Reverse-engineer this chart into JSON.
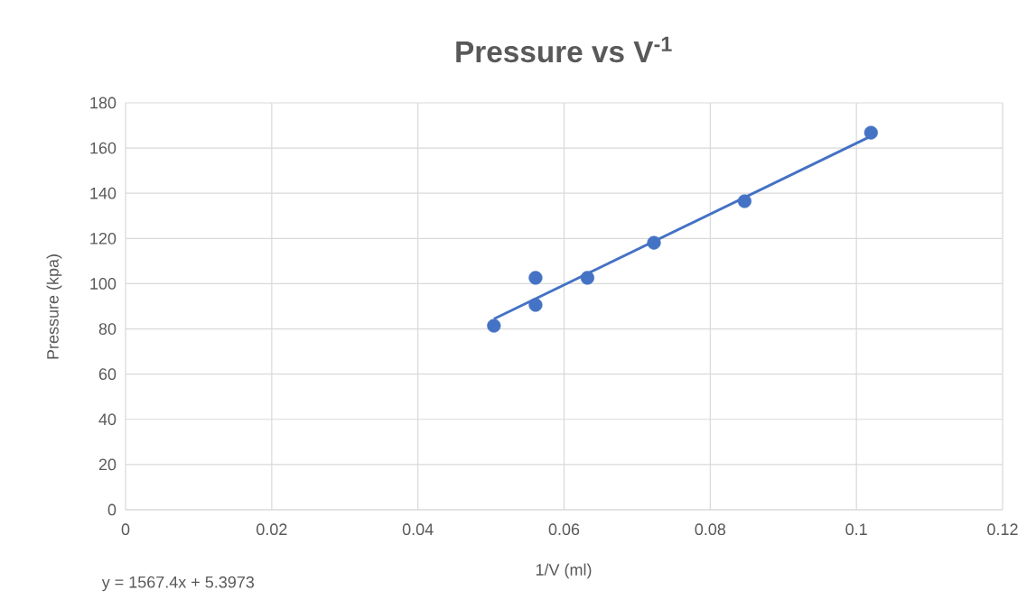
{
  "chart_data": {
    "type": "scatter",
    "title": "Pressure vs V$^{-1}$",
    "xlabel": "1/V (ml)",
    "ylabel": "Pressure (kpa)",
    "annotations": [
      "y = 1567.4x + 5.3973"
    ],
    "series": [
      {
        "color": "#4472c4",
        "marker": "circle",
        "x": [
          0.0504,
          0.0561,
          0.0561,
          0.0632,
          0.0723,
          0.0847,
          0.102
        ],
        "values": [
          81.4,
          102.6,
          90.6,
          102.6,
          118.1,
          136.5,
          166.8
        ]
      },
      {
        "type": "line",
        "color": "#4472c4",
        "marker": "none",
        "line_style": "solid",
        "x": [
          0.0504,
          0.102
        ],
        "values": [
          84.4,
          165.3
        ]
      }
    ],
    "xlim": [
      0,
      0.12
    ],
    "ylim": [
      0,
      180
    ],
    "xticks": [
      0,
      0.02,
      0.04,
      0.06,
      0.08,
      0.1,
      0.12
    ],
    "yticks": [
      0,
      20,
      40,
      60,
      80,
      100,
      120,
      140,
      160,
      180
    ],
    "grid": true
  }
}
